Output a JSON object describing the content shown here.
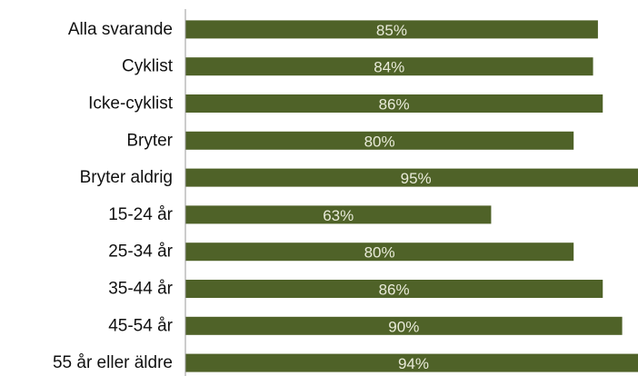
{
  "chart_data": {
    "type": "bar",
    "orientation": "horizontal",
    "categories": [
      "Alla svarande",
      "Cyklist",
      "Icke-cyklist",
      "Bryter",
      "Bryter aldrig",
      "15-24 år",
      "25-34 år",
      "35-44 år",
      "45-54 år",
      "55 år eller äldre"
    ],
    "values": [
      85,
      84,
      86,
      80,
      95,
      63,
      80,
      86,
      90,
      94
    ],
    "value_labels": [
      "85%",
      "84%",
      "86%",
      "80%",
      "95%",
      "63%",
      "80%",
      "86%",
      "90%",
      "94%"
    ],
    "color": "#4f6228",
    "xlim": [
      0,
      100
    ]
  }
}
